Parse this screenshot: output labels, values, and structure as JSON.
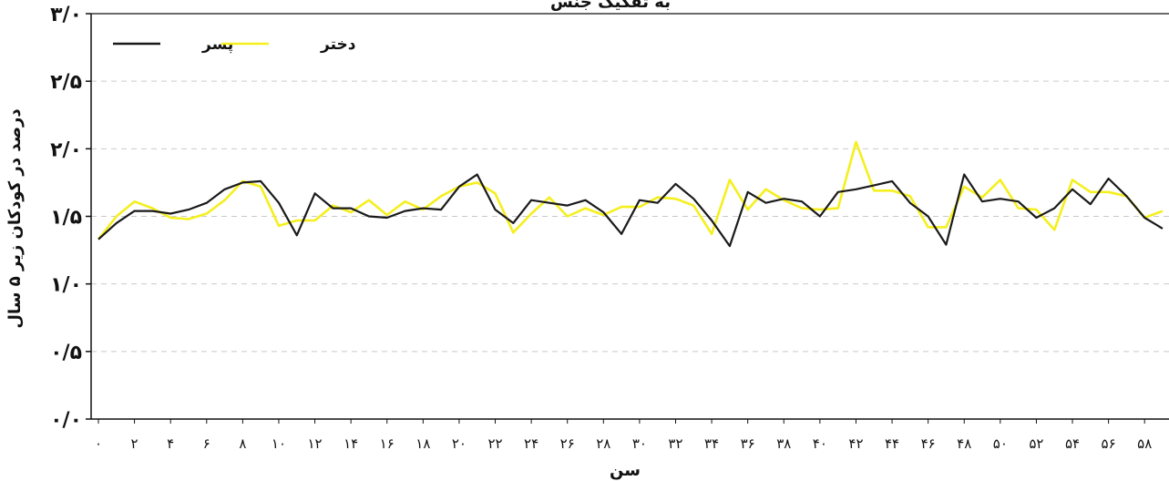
{
  "chart_data": {
    "type": "line",
    "title": "به تفکیک جنس",
    "xlabel": "سن",
    "ylabel": "درصد در کودکان زیر ۵ سال",
    "ylim": [
      0,
      3.0
    ],
    "xlim": [
      0,
      59
    ],
    "grid": true,
    "legend_position": "top-left",
    "y_ticks": [
      {
        "value": 0,
        "label": "۰/۰"
      },
      {
        "value": 0.5,
        "label": "۰/۵"
      },
      {
        "value": 1.0,
        "label": "۱/۰"
      },
      {
        "value": 1.5,
        "label": "۱/۵"
      },
      {
        "value": 2.0,
        "label": "۲/۰"
      },
      {
        "value": 2.5,
        "label": "۲/۵"
      },
      {
        "value": 3.0,
        "label": "۳/۰"
      }
    ],
    "x_ticks": [
      {
        "value": 0,
        "label": "۰"
      },
      {
        "value": 2,
        "label": "۲"
      },
      {
        "value": 4,
        "label": "۴"
      },
      {
        "value": 6,
        "label": "۶"
      },
      {
        "value": 8,
        "label": "۸"
      },
      {
        "value": 10,
        "label": "۱۰"
      },
      {
        "value": 12,
        "label": "۱۲"
      },
      {
        "value": 14,
        "label": "۱۴"
      },
      {
        "value": 16,
        "label": "۱۶"
      },
      {
        "value": 18,
        "label": "۱۸"
      },
      {
        "value": 20,
        "label": "۲۰"
      },
      {
        "value": 22,
        "label": "۲۲"
      },
      {
        "value": 24,
        "label": "۲۴"
      },
      {
        "value": 26,
        "label": "۲۶"
      },
      {
        "value": 28,
        "label": "۲۸"
      },
      {
        "value": 30,
        "label": "۳۰"
      },
      {
        "value": 32,
        "label": "۳۲"
      },
      {
        "value": 34,
        "label": "۳۴"
      },
      {
        "value": 36,
        "label": "۳۶"
      },
      {
        "value": 38,
        "label": "۳۸"
      },
      {
        "value": 40,
        "label": "۴۰"
      },
      {
        "value": 42,
        "label": "۴۲"
      },
      {
        "value": 44,
        "label": "۴۴"
      },
      {
        "value": 46,
        "label": "۴۶"
      },
      {
        "value": 48,
        "label": "۴۸"
      },
      {
        "value": 50,
        "label": "۵۰"
      },
      {
        "value": 52,
        "label": "۵۲"
      },
      {
        "value": 54,
        "label": "۵۴"
      },
      {
        "value": 56,
        "label": "۵۶"
      },
      {
        "value": 58,
        "label": "۵۸"
      }
    ],
    "x": [
      0,
      1,
      2,
      3,
      4,
      5,
      6,
      7,
      8,
      9,
      10,
      11,
      12,
      13,
      14,
      15,
      16,
      17,
      18,
      19,
      20,
      21,
      22,
      23,
      24,
      25,
      26,
      27,
      28,
      29,
      30,
      31,
      32,
      33,
      34,
      35,
      36,
      37,
      38,
      39,
      40,
      41,
      42,
      43,
      44,
      45,
      46,
      47,
      48,
      49,
      50,
      51,
      52,
      53,
      54,
      55,
      56,
      57,
      58,
      59
    ],
    "series": [
      {
        "name": "پسر",
        "color": "#1a1a1a",
        "values": [
          1.33,
          1.45,
          1.54,
          1.54,
          1.52,
          1.55,
          1.6,
          1.7,
          1.75,
          1.76,
          1.6,
          1.36,
          1.67,
          1.56,
          1.56,
          1.5,
          1.49,
          1.54,
          1.56,
          1.55,
          1.72,
          1.81,
          1.55,
          1.45,
          1.62,
          1.6,
          1.58,
          1.62,
          1.53,
          1.37,
          1.62,
          1.6,
          1.74,
          1.63,
          1.47,
          1.28,
          1.68,
          1.6,
          1.63,
          1.61,
          1.5,
          1.68,
          1.7,
          1.73,
          1.76,
          1.6,
          1.5,
          1.29,
          1.81,
          1.61,
          1.63,
          1.61,
          1.49,
          1.56,
          1.7,
          1.59,
          1.78,
          1.65,
          1.49,
          1.41
        ]
      },
      {
        "name": "دختر",
        "color": "#f5ef1f",
        "values": [
          1.33,
          1.5,
          1.61,
          1.56,
          1.49,
          1.48,
          1.52,
          1.62,
          1.76,
          1.72,
          1.43,
          1.47,
          1.47,
          1.58,
          1.53,
          1.62,
          1.51,
          1.61,
          1.55,
          1.65,
          1.72,
          1.75,
          1.67,
          1.38,
          1.52,
          1.64,
          1.5,
          1.56,
          1.51,
          1.57,
          1.57,
          1.64,
          1.63,
          1.58,
          1.37,
          1.77,
          1.55,
          1.7,
          1.62,
          1.56,
          1.55,
          1.56,
          2.05,
          1.69,
          1.69,
          1.65,
          1.42,
          1.42,
          1.72,
          1.64,
          1.77,
          1.56,
          1.55,
          1.4,
          1.77,
          1.68,
          1.68,
          1.65,
          1.49,
          1.54
        ]
      }
    ]
  }
}
